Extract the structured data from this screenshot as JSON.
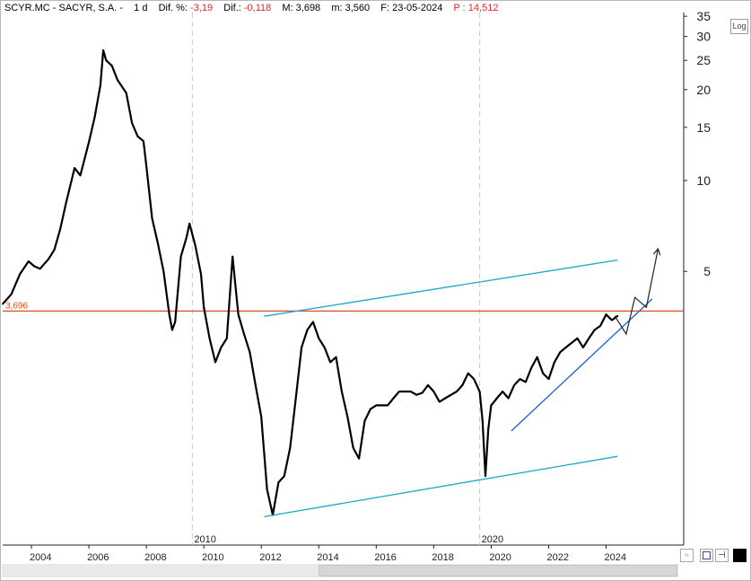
{
  "header": {
    "symbol": "SCYR.MC - SACYR, S.A. -",
    "period": "1 d",
    "dif_pct_label": "Dif. %:",
    "dif_pct_value": "-3,19",
    "dif_label": "Dif.:",
    "dif_value": "-0,118",
    "max_label": "M: 3,698",
    "min_label": "m: 3,560",
    "date_label": "F: 23-05-2024",
    "price_label": "P : 14,512"
  },
  "controls": {
    "log_button": "Log",
    "zoom_icon": "zoom-icon",
    "save_icon": "save-icon",
    "pin_icon": "pin-icon"
  },
  "colors": {
    "price": "#000000",
    "channel": "#1aa7c8",
    "trendline": "#1f5fd0",
    "level": "#d9501f",
    "level_label": "#d9501f",
    "grid": "#dcdcdc",
    "divider": "#c8c8c8"
  },
  "chart_data": {
    "type": "line",
    "scale": "log",
    "xlabel": "",
    "ylabel": "",
    "xlim": [
      2003.0,
      2026.7
    ],
    "ylim": [
      0.62,
      36
    ],
    "y_ticks": [
      35,
      30,
      25,
      20,
      15,
      10,
      5
    ],
    "x_ticks": [
      "2004",
      "2006",
      "2008",
      "2010",
      "2012",
      "2014",
      "2016",
      "2018",
      "2020",
      "2022",
      "2024"
    ],
    "dividers": [
      {
        "label": "2010",
        "x": 2009.6
      },
      {
        "label": "2020",
        "x": 2019.6
      }
    ],
    "level_line": {
      "value": 3.696,
      "label": "3,696"
    },
    "series": [
      {
        "x": [
          2003.0,
          2003.3,
          2003.6,
          2003.9,
          2004.1,
          2004.3,
          2004.6,
          2004.8,
          2005.0,
          2005.2,
          2005.5,
          2005.7,
          2006.0,
          2006.2,
          2006.4,
          2006.5,
          2006.6,
          2006.8,
          2007.0,
          2007.3,
          2007.5,
          2007.7,
          2007.9,
          2008.0,
          2008.2,
          2008.4,
          2008.6,
          2008.8,
          2008.9,
          2009.0,
          2009.2,
          2009.4,
          2009.5,
          2009.7,
          2009.9,
          2010.0,
          2010.2,
          2010.4,
          2010.6,
          2010.8,
          2011.0,
          2011.2,
          2011.4,
          2011.6,
          2011.8,
          2012.0,
          2012.2,
          2012.4,
          2012.6,
          2012.8,
          2013.0,
          2013.2,
          2013.4,
          2013.6,
          2013.8,
          2014.0,
          2014.2,
          2014.4,
          2014.6,
          2014.8,
          2015.0,
          2015.2,
          2015.4,
          2015.6,
          2015.8,
          2016.0,
          2016.2,
          2016.4,
          2016.6,
          2016.8,
          2017.0,
          2017.2,
          2017.4,
          2017.6,
          2017.8,
          2018.0,
          2018.2,
          2018.4,
          2018.6,
          2018.8,
          2019.0,
          2019.2,
          2019.4,
          2019.6,
          2019.7,
          2019.8,
          2019.9,
          2020.0,
          2020.2,
          2020.4,
          2020.6,
          2020.8,
          2021.0,
          2021.2,
          2021.4,
          2021.6,
          2021.8,
          2022.0,
          2022.2,
          2022.4,
          2022.6,
          2022.8,
          2023.0,
          2023.2,
          2023.4,
          2023.6,
          2023.8,
          2024.0,
          2024.2,
          2024.3,
          2024.4
        ],
        "values": [
          3.9,
          4.2,
          4.9,
          5.4,
          5.2,
          5.1,
          5.5,
          5.9,
          6.9,
          8.4,
          11.0,
          10.4,
          13.4,
          16.2,
          20.7,
          27.0,
          25.0,
          24.0,
          21.5,
          19.5,
          15.5,
          14.0,
          13.5,
          11.2,
          7.5,
          6.2,
          5.0,
          3.6,
          3.2,
          3.4,
          5.6,
          6.5,
          7.2,
          6.1,
          4.9,
          3.8,
          3.0,
          2.5,
          2.8,
          3.0,
          5.6,
          3.6,
          3.1,
          2.7,
          2.1,
          1.65,
          0.95,
          0.78,
          1.0,
          1.05,
          1.3,
          1.9,
          2.8,
          3.2,
          3.4,
          3.0,
          2.8,
          2.5,
          2.6,
          2.0,
          1.65,
          1.3,
          1.2,
          1.6,
          1.75,
          1.8,
          1.8,
          1.8,
          1.9,
          2.0,
          2.0,
          2.0,
          1.95,
          1.98,
          2.1,
          2.0,
          1.85,
          1.9,
          1.95,
          2.0,
          2.1,
          2.3,
          2.2,
          2.0,
          1.6,
          1.05,
          1.5,
          1.8,
          1.9,
          2.0,
          1.9,
          2.1,
          2.2,
          2.15,
          2.4,
          2.6,
          2.3,
          2.2,
          2.5,
          2.7,
          2.8,
          2.9,
          3.0,
          2.8,
          3.0,
          3.2,
          3.3,
          3.6,
          3.45,
          3.5,
          3.56
        ]
      }
    ],
    "annotations": [
      {
        "type": "channel",
        "x": [
          2012.1,
          2024.4
        ],
        "values": [
          3.55,
          5.45
        ]
      },
      {
        "type": "channel",
        "x": [
          2012.1,
          2024.4
        ],
        "values": [
          0.77,
          1.22
        ]
      },
      {
        "type": "trendline",
        "x": [
          2020.7,
          2025.6
        ],
        "values": [
          1.48,
          4.05
        ]
      },
      {
        "type": "projection",
        "x": [
          2024.3,
          2024.7,
          2025.0,
          2025.4,
          2025.8
        ],
        "values": [
          3.56,
          3.1,
          4.1,
          3.8,
          5.9
        ]
      }
    ]
  }
}
